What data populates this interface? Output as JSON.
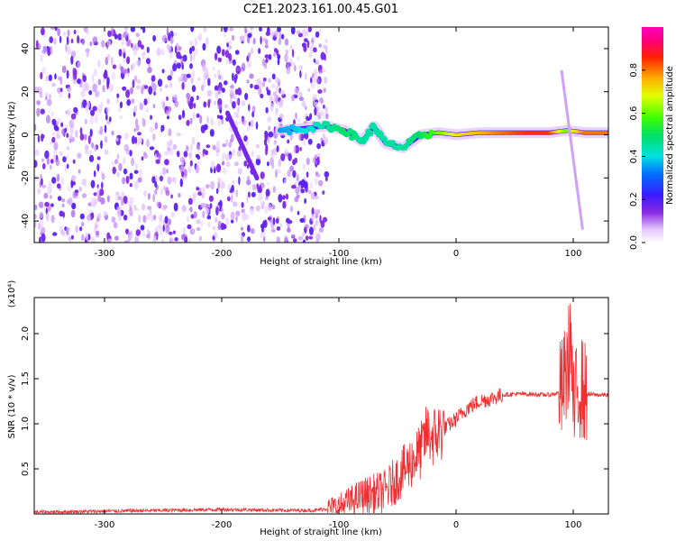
{
  "figure_title": "C2E1.2023.161.00.45.G01",
  "colors": {
    "snr_line": "#f03030",
    "axes": "#000000"
  },
  "chart_data": [
    {
      "type": "heatmap",
      "title": "",
      "xlabel": "Height of straight line (km)",
      "ylabel": "Frequency (Hz)",
      "xlim": [
        -360,
        130
      ],
      "ylim": [
        -50,
        50
      ],
      "xticks": [
        -300,
        -200,
        -100,
        0,
        100
      ],
      "xtick_labels": [
        "-300",
        "-200",
        "-100",
        "0",
        "100"
      ],
      "yticks": [
        -40,
        -20,
        0,
        20,
        40
      ],
      "ytick_labels": [
        "-40",
        "-20",
        "0",
        "20",
        "40"
      ],
      "colorbar": {
        "label": "Normalized spectral amplitude",
        "range": [
          0,
          1
        ],
        "ticks": [
          0.0,
          0.2,
          0.4,
          0.6,
          0.8
        ],
        "tick_labels": [
          "0.0",
          "0.2",
          "0.4",
          "0.6",
          "0.8"
        ],
        "colormap": "rainbow: white-violet-blue-cyan-green-yellow-red-magenta"
      },
      "ridge": [
        {
          "x": -150,
          "y": 2,
          "amp": 0.35
        },
        {
          "x": -130,
          "y": 3,
          "amp": 0.4
        },
        {
          "x": -110,
          "y": 4,
          "amp": 0.45
        },
        {
          "x": -95,
          "y": 2,
          "amp": 0.5
        },
        {
          "x": -80,
          "y": -3,
          "amp": 0.45
        },
        {
          "x": -70,
          "y": 4,
          "amp": 0.45
        },
        {
          "x": -60,
          "y": -4,
          "amp": 0.45
        },
        {
          "x": -45,
          "y": -6,
          "amp": 0.45
        },
        {
          "x": -30,
          "y": 0,
          "amp": 0.5
        },
        {
          "x": -15,
          "y": 1,
          "amp": 0.6
        },
        {
          "x": 0,
          "y": 0,
          "amp": 0.7
        },
        {
          "x": 20,
          "y": 1,
          "amp": 0.75
        },
        {
          "x": 40,
          "y": 1,
          "amp": 0.8
        },
        {
          "x": 60,
          "y": 1,
          "amp": 0.85
        },
        {
          "x": 80,
          "y": 1,
          "amp": 0.85
        },
        {
          "x": 95,
          "y": 2,
          "amp": 0.6
        },
        {
          "x": 110,
          "y": 1,
          "amp": 0.8
        },
        {
          "x": 130,
          "y": 1,
          "amp": 0.8
        }
      ]
    },
    {
      "type": "line",
      "title": "",
      "xlabel": "Height of straight line (km)",
      "ylabel": "SNR (10 * v/v)",
      "y_multiplier": "(x10⁴)",
      "xlim": [
        -360,
        130
      ],
      "ylim": [
        0,
        2.4
      ],
      "xticks": [
        -300,
        -200,
        -100,
        0,
        100
      ],
      "xtick_labels": [
        "-300",
        "-200",
        "-100",
        "0",
        "100"
      ],
      "yticks": [
        0.5,
        1.0,
        1.5,
        2.0
      ],
      "ytick_labels": [
        "0.5",
        "1.0",
        "1.5",
        "2.0"
      ],
      "series": [
        {
          "x": [
            -360,
            -300,
            -250,
            -200,
            -150,
            -120,
            -100,
            -80,
            -60,
            -50,
            -40,
            -30,
            -25,
            -20,
            -10,
            0,
            10,
            20,
            30,
            40,
            50,
            60,
            80,
            90,
            95,
            98,
            100,
            105,
            110,
            120,
            130
          ],
          "y": [
            0.02,
            0.03,
            0.04,
            0.05,
            0.04,
            0.04,
            0.08,
            0.2,
            0.25,
            0.4,
            0.55,
            0.7,
            0.9,
            0.85,
            0.95,
            1.05,
            1.18,
            1.25,
            1.28,
            1.32,
            1.33,
            1.33,
            1.32,
            1.35,
            1.6,
            2.0,
            1.1,
            1.45,
            1.33,
            1.32,
            1.32
          ]
        }
      ]
    }
  ]
}
